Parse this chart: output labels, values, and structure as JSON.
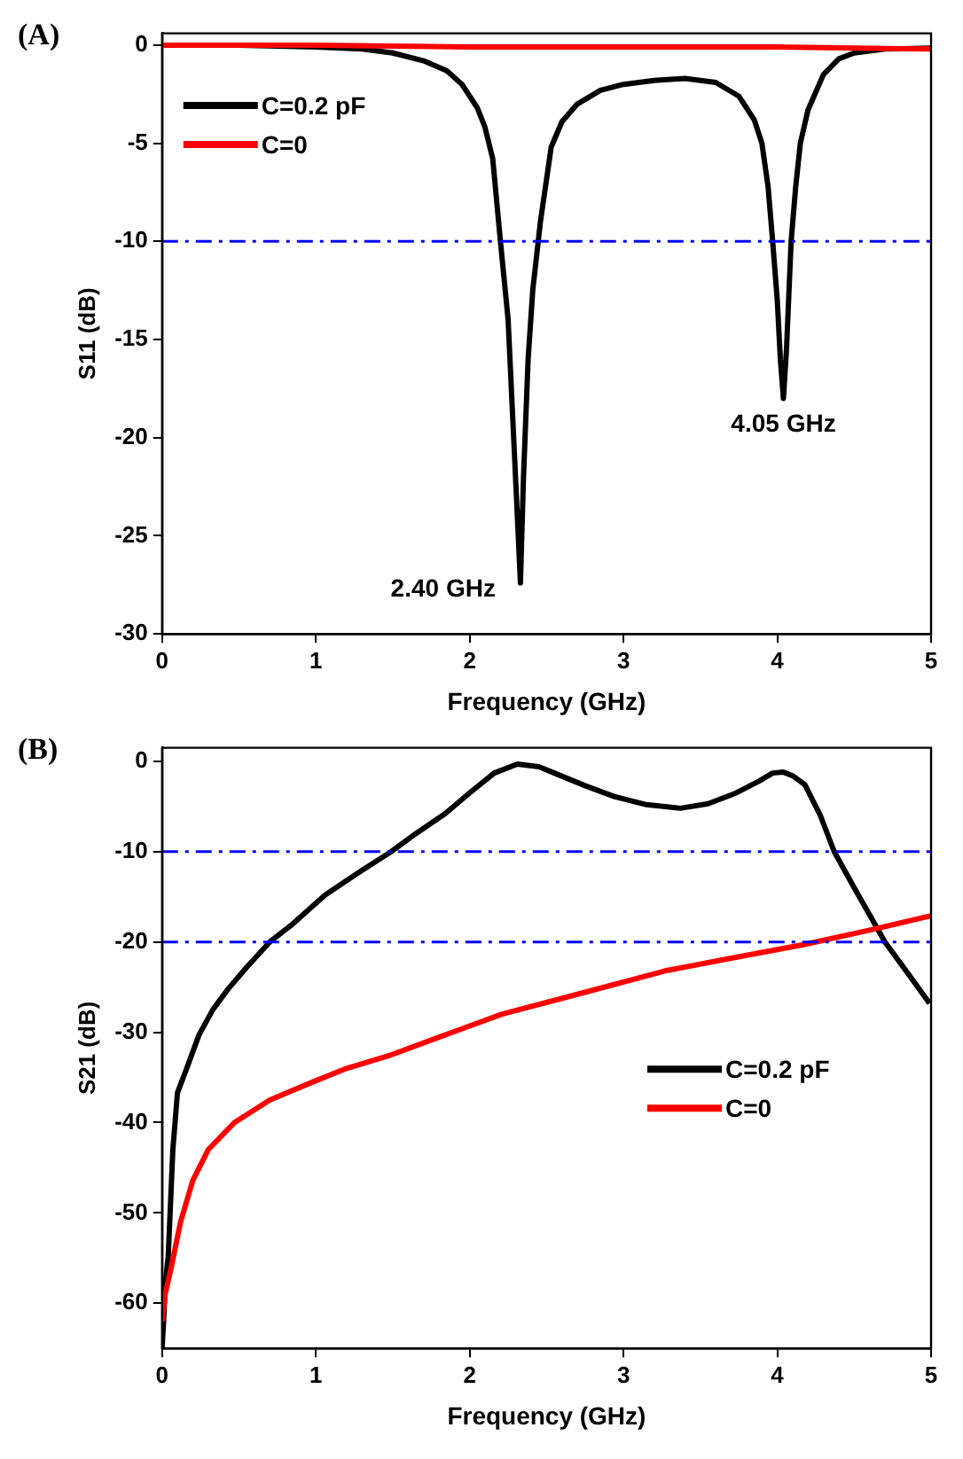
{
  "chart_data": [
    {
      "type": "line",
      "title": "(A)",
      "xlabel": "Frequency (GHz)",
      "ylabel": "S11 (dB)",
      "xlim": [
        0,
        5
      ],
      "xticks": [
        0,
        1,
        2,
        3,
        4,
        5
      ],
      "ylim": [
        -30,
        0.6
      ],
      "yticks": [
        -30,
        -25,
        -20,
        -15,
        -10,
        -5,
        0
      ],
      "grid": false,
      "legend": "top left",
      "marker": "none",
      "line_style": "solid",
      "series": [
        {
          "name": "C=0.2 pF",
          "color": "#000000",
          "x": [
            0,
            0.5,
            1.0,
            1.3,
            1.5,
            1.7,
            1.85,
            1.95,
            2.05,
            2.1,
            2.15,
            2.2,
            2.25,
            2.28,
            2.31,
            2.33,
            2.35,
            2.38,
            2.41,
            2.46,
            2.53,
            2.6,
            2.7,
            2.85,
            3.0,
            3.2,
            3.4,
            3.6,
            3.75,
            3.85,
            3.9,
            3.94,
            3.97,
            4.0,
            4.02,
            4.04,
            4.06,
            4.09,
            4.12,
            4.15,
            4.2,
            4.3,
            4.4,
            4.5,
            4.7,
            5.0
          ],
          "values": [
            0,
            0,
            -0.1,
            -0.2,
            -0.4,
            -0.8,
            -1.3,
            -2,
            -3.2,
            -4.2,
            -5.8,
            -10,
            -14,
            -19,
            -24,
            -27.4,
            -22,
            -16,
            -12.5,
            -9,
            -5.2,
            -3.9,
            -3,
            -2.3,
            -2,
            -1.8,
            -1.7,
            -1.9,
            -2.6,
            -3.8,
            -5,
            -7.2,
            -10,
            -13,
            -16,
            -18,
            -15.5,
            -10,
            -7.2,
            -5,
            -3.3,
            -1.5,
            -0.7,
            -0.4,
            -0.2,
            -0.15
          ]
        },
        {
          "name": "C=0",
          "color": "#ff0000",
          "x": [
            0,
            1,
            2,
            3,
            4,
            5
          ],
          "values": [
            0,
            0,
            -0.1,
            -0.1,
            -0.1,
            -0.2
          ]
        }
      ],
      "ref_lines": [
        {
          "axis": "y",
          "value": -10,
          "color": "#0000ff",
          "line_style": "dashdot"
        }
      ],
      "annotations": [
        {
          "text": "2.40 GHz",
          "x": 2.33,
          "y": -27.4
        },
        {
          "text": "4.05 GHz",
          "x": 4.04,
          "y": -18
        }
      ]
    },
    {
      "type": "line",
      "title": "(B)",
      "xlabel": "Frequency (GHz)",
      "ylabel": "S21 (dB)",
      "xlim": [
        0,
        5
      ],
      "xticks": [
        0,
        1,
        2,
        3,
        4,
        5
      ],
      "ylim": [
        -65,
        1.5
      ],
      "yticks": [
        -60,
        -50,
        -40,
        -30,
        -20,
        -10,
        0
      ],
      "grid": false,
      "legend": "right",
      "marker": "none",
      "line_style": "solid",
      "series": [
        {
          "name": "C=0.2 pF",
          "color": "#000000",
          "x": [
            0,
            0.01,
            0.02,
            0.04,
            0.07,
            0.1,
            0.16,
            0.24,
            0.33,
            0.43,
            0.55,
            0.7,
            0.85,
            1.06,
            1.27,
            1.49,
            1.65,
            1.84,
            2.0,
            2.16,
            2.31,
            2.45,
            2.55,
            2.75,
            2.94,
            3.15,
            3.37,
            3.55,
            3.72,
            3.88,
            3.97,
            4.04,
            4.1,
            4.18,
            4.28,
            4.37,
            4.5,
            4.6,
            4.7,
            4.85,
            4.99
          ],
          "values": [
            -65,
            -62,
            -58,
            -54.8,
            -43,
            -36.7,
            -34,
            -30.3,
            -27.5,
            -25.2,
            -22.8,
            -20,
            -18,
            -14.8,
            -12.4,
            -10,
            -8,
            -5.8,
            -3.5,
            -1.3,
            -0.3,
            -0.6,
            -1.3,
            -2.7,
            -3.9,
            -4.8,
            -5.2,
            -4.7,
            -3.6,
            -2.2,
            -1.3,
            -1.2,
            -1.6,
            -2.6,
            -6,
            -10,
            -14,
            -17,
            -20,
            -23.5,
            -26.8
          ]
        },
        {
          "name": "C=0",
          "color": "#ff0000",
          "x": [
            0,
            0.02,
            0.06,
            0.12,
            0.2,
            0.3,
            0.47,
            0.7,
            0.98,
            1.2,
            1.49,
            1.84,
            2.21,
            2.7,
            3.27,
            3.7,
            4.17,
            4.6,
            4.95,
            5.0
          ],
          "values": [
            -62,
            -59,
            -56,
            -51,
            -46.4,
            -43,
            -40,
            -37.5,
            -35.5,
            -34,
            -32.5,
            -30.3,
            -28,
            -25.8,
            -23.2,
            -21.8,
            -20.3,
            -18.7,
            -17.3,
            -17.1
          ]
        }
      ],
      "ref_lines": [
        {
          "axis": "y",
          "value": -10,
          "color": "#0000ff",
          "line_style": "dashdot"
        },
        {
          "axis": "y",
          "value": -20,
          "color": "#0000ff",
          "line_style": "dashdot"
        }
      ]
    }
  ]
}
